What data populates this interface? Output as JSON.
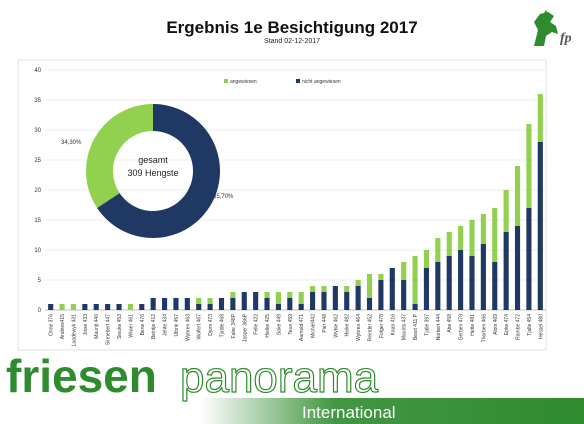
{
  "title": "Ergebnis 1e Besichtigung 2017",
  "subtitle": "Stand 02-12-2017",
  "brand": {
    "word1": "friesen",
    "word2": "panorama",
    "word3": "International"
  },
  "colors": {
    "nicht_angewiesen": "#1f3864",
    "angewiesen": "#92d050",
    "brand_green": "#2e8b2e"
  },
  "logo": {
    "icon": "horse-head-logo",
    "letters": "fp"
  },
  "chart_data": {
    "type": "bar",
    "stacked": true,
    "title": "",
    "ylim": [
      0,
      40
    ],
    "yticks": [
      0,
      5,
      10,
      15,
      20,
      25,
      30,
      35,
      40
    ],
    "grid": true,
    "legend_position": "top-right",
    "categories": [
      "Onne 376",
      "Andries415",
      "Loadewyk 431",
      "Jisse 433",
      "Maurijt 440",
      "Sinnebert 447",
      "Sieuke 453",
      "Wiwer 461",
      "Bene 476",
      "Beintje 412",
      "Jehte 434",
      "Ulbrik 457",
      "Wybren 463",
      "Wolfert 467",
      "Djorn 473",
      "Tjalde 468",
      "Fabe 348P",
      "Jasper 366P",
      "Felle 422",
      "Hielke 425",
      "Sake 449",
      "Teun 459",
      "Aarnold 471",
      "Michiel442",
      "Pier 448",
      "Wytse 462",
      "Haike 482",
      "Wybren 464",
      "Reinder 452",
      "Folger 478",
      "Kaan 416",
      "Maurits 437",
      "Beart 411 P",
      "Tjalle 397",
      "Norbert 444",
      "Abe 458",
      "Gerben 479",
      "Hette 481",
      "Thorben 466",
      "Aloin 469",
      "Epke 474",
      "Rambe 472",
      "Tjalle 454",
      "Hessel 480"
    ],
    "series": [
      {
        "name": "nicht angewiesen",
        "values": [
          1,
          0,
          0,
          1,
          1,
          1,
          1,
          0,
          1,
          2,
          2,
          2,
          2,
          1,
          1,
          2,
          2,
          3,
          3,
          2,
          1,
          2,
          1,
          3,
          3,
          4,
          3,
          4,
          2,
          5,
          7,
          5,
          1,
          7,
          8,
          9,
          10,
          9,
          11,
          8,
          13,
          14,
          17,
          28
        ]
      },
      {
        "name": "angewiesen",
        "values": [
          0,
          1,
          1,
          0,
          0,
          0,
          0,
          1,
          0,
          0,
          0,
          0,
          0,
          1,
          1,
          0,
          1,
          0,
          0,
          1,
          2,
          1,
          2,
          1,
          1,
          0,
          1,
          1,
          4,
          1,
          0,
          3,
          8,
          3,
          4,
          4,
          4,
          6,
          5,
          9,
          7,
          10,
          14,
          8
        ]
      }
    ],
    "pie": {
      "center_line1": "gesamt",
      "center_line2": "309 Hengste",
      "slices": [
        {
          "label": "nicht angewiesen",
          "percent": 65.7,
          "text": "65,70%"
        },
        {
          "label": "angewiesen",
          "percent": 34.3,
          "text": "34,30%"
        }
      ]
    }
  }
}
